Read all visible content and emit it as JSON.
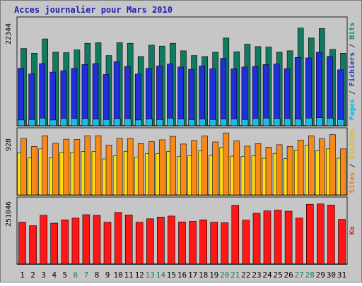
{
  "chart_data": {
    "type": "bar",
    "title": "Acces journalier pour Mars 2010",
    "days": [
      "1",
      "2",
      "3",
      "4",
      "5",
      "6",
      "7",
      "8",
      "9",
      "10",
      "11",
      "12",
      "13",
      "14",
      "15",
      "16",
      "17",
      "18",
      "19",
      "20",
      "21",
      "22",
      "23",
      "24",
      "25",
      "26",
      "27",
      "28",
      "29",
      "30",
      "31"
    ],
    "weekend_days": [
      "6",
      "7",
      "13",
      "14",
      "20",
      "21",
      "27",
      "28"
    ],
    "panels": [
      {
        "id": "traffic",
        "ymax_label": "22344",
        "ymax": 22344,
        "vertical_label": [
          {
            "text": "Pages",
            "color": "#0eb5e6"
          },
          {
            "text": " / ",
            "color": "#333333"
          },
          {
            "text": "Fichiers",
            "color": "#1a3bbf"
          },
          {
            "text": " / ",
            "color": "#333333"
          },
          {
            "text": "Hits",
            "color": "#128a6a"
          }
        ],
        "series": [
          {
            "name": "Hits",
            "color": "#127a60",
            "values": [
              16300,
              15300,
              18300,
              15500,
              15400,
              16000,
              17400,
              17500,
              14800,
              17500,
              17400,
              14600,
              17000,
              16800,
              17400,
              15800,
              14800,
              14600,
              15500,
              18500,
              15600,
              17200,
              16700,
              16600,
              15500,
              15800,
              20600,
              18500,
              20500,
              16100,
              15300
            ]
          },
          {
            "name": "Fichiers",
            "color": "#1f2fdc",
            "values": [
              12100,
              10900,
              13100,
              11300,
              11600,
              12100,
              12900,
              13100,
              10800,
              13500,
              12500,
              10900,
              12100,
              12600,
              13000,
              12400,
              11900,
              12600,
              12000,
              14200,
              12000,
              12400,
              12500,
              12900,
              13000,
              12000,
              14400,
              14300,
              15500,
              14600,
              11800
            ]
          },
          {
            "name": "Pages",
            "color": "#21b8e6",
            "values": [
              1200,
              1300,
              1600,
              1200,
              1500,
              1500,
              1500,
              1400,
              1300,
              1500,
              1500,
              1200,
              1400,
              1300,
              1600,
              1400,
              1300,
              1400,
              1300,
              1400,
              1400,
              1300,
              1500,
              1600,
              1500,
              1500,
              1400,
              1600,
              1700,
              1600,
              1300
            ]
          }
        ]
      },
      {
        "id": "visitors",
        "ymax_label": "928",
        "ymax": 928,
        "vertical_label": [
          {
            "text": "Sites",
            "color": "#f07c10"
          },
          {
            "text": " / ",
            "color": "#333333"
          },
          {
            "text": "Visites",
            "color": "#d8c20a"
          }
        ],
        "series": [
          {
            "name": "Visites",
            "color": "#ffde10",
            "values": [
              605,
              535,
              665,
              535,
              615,
              615,
              625,
              625,
              520,
              565,
              625,
              545,
              595,
              595,
              625,
              555,
              565,
              635,
              570,
              685,
              560,
              555,
              565,
              530,
              600,
              525,
              640,
              715,
              635,
              665,
              530
            ]
          },
          {
            "name": "Sites",
            "color": "#f7891a",
            "values": [
              815,
              700,
              855,
              745,
              805,
              800,
              855,
              855,
              720,
              815,
              815,
              740,
              770,
              795,
              845,
              735,
              785,
              850,
              765,
              895,
              780,
              705,
              740,
              690,
              725,
              700,
              790,
              855,
              810,
              870,
              665
            ]
          }
        ]
      },
      {
        "id": "ko",
        "ymax_label": "251046",
        "ymax": 251046,
        "vertical_label": [
          {
            "text": "Ko",
            "color": "#ee1111"
          }
        ],
        "series": [
          {
            "name": "Ko",
            "color": "#ff1616",
            "values": [
              164000,
              150000,
              191000,
              160000,
              173000,
              180000,
              193000,
              191000,
              164000,
              202000,
              192000,
              164000,
              177000,
              184000,
              188000,
              165000,
              167000,
              173000,
              164000,
              162000,
              230000,
              172000,
              199000,
              208000,
              211000,
              207000,
              180000,
              234000,
              235000,
              231000,
              175000
            ]
          }
        ]
      }
    ]
  }
}
